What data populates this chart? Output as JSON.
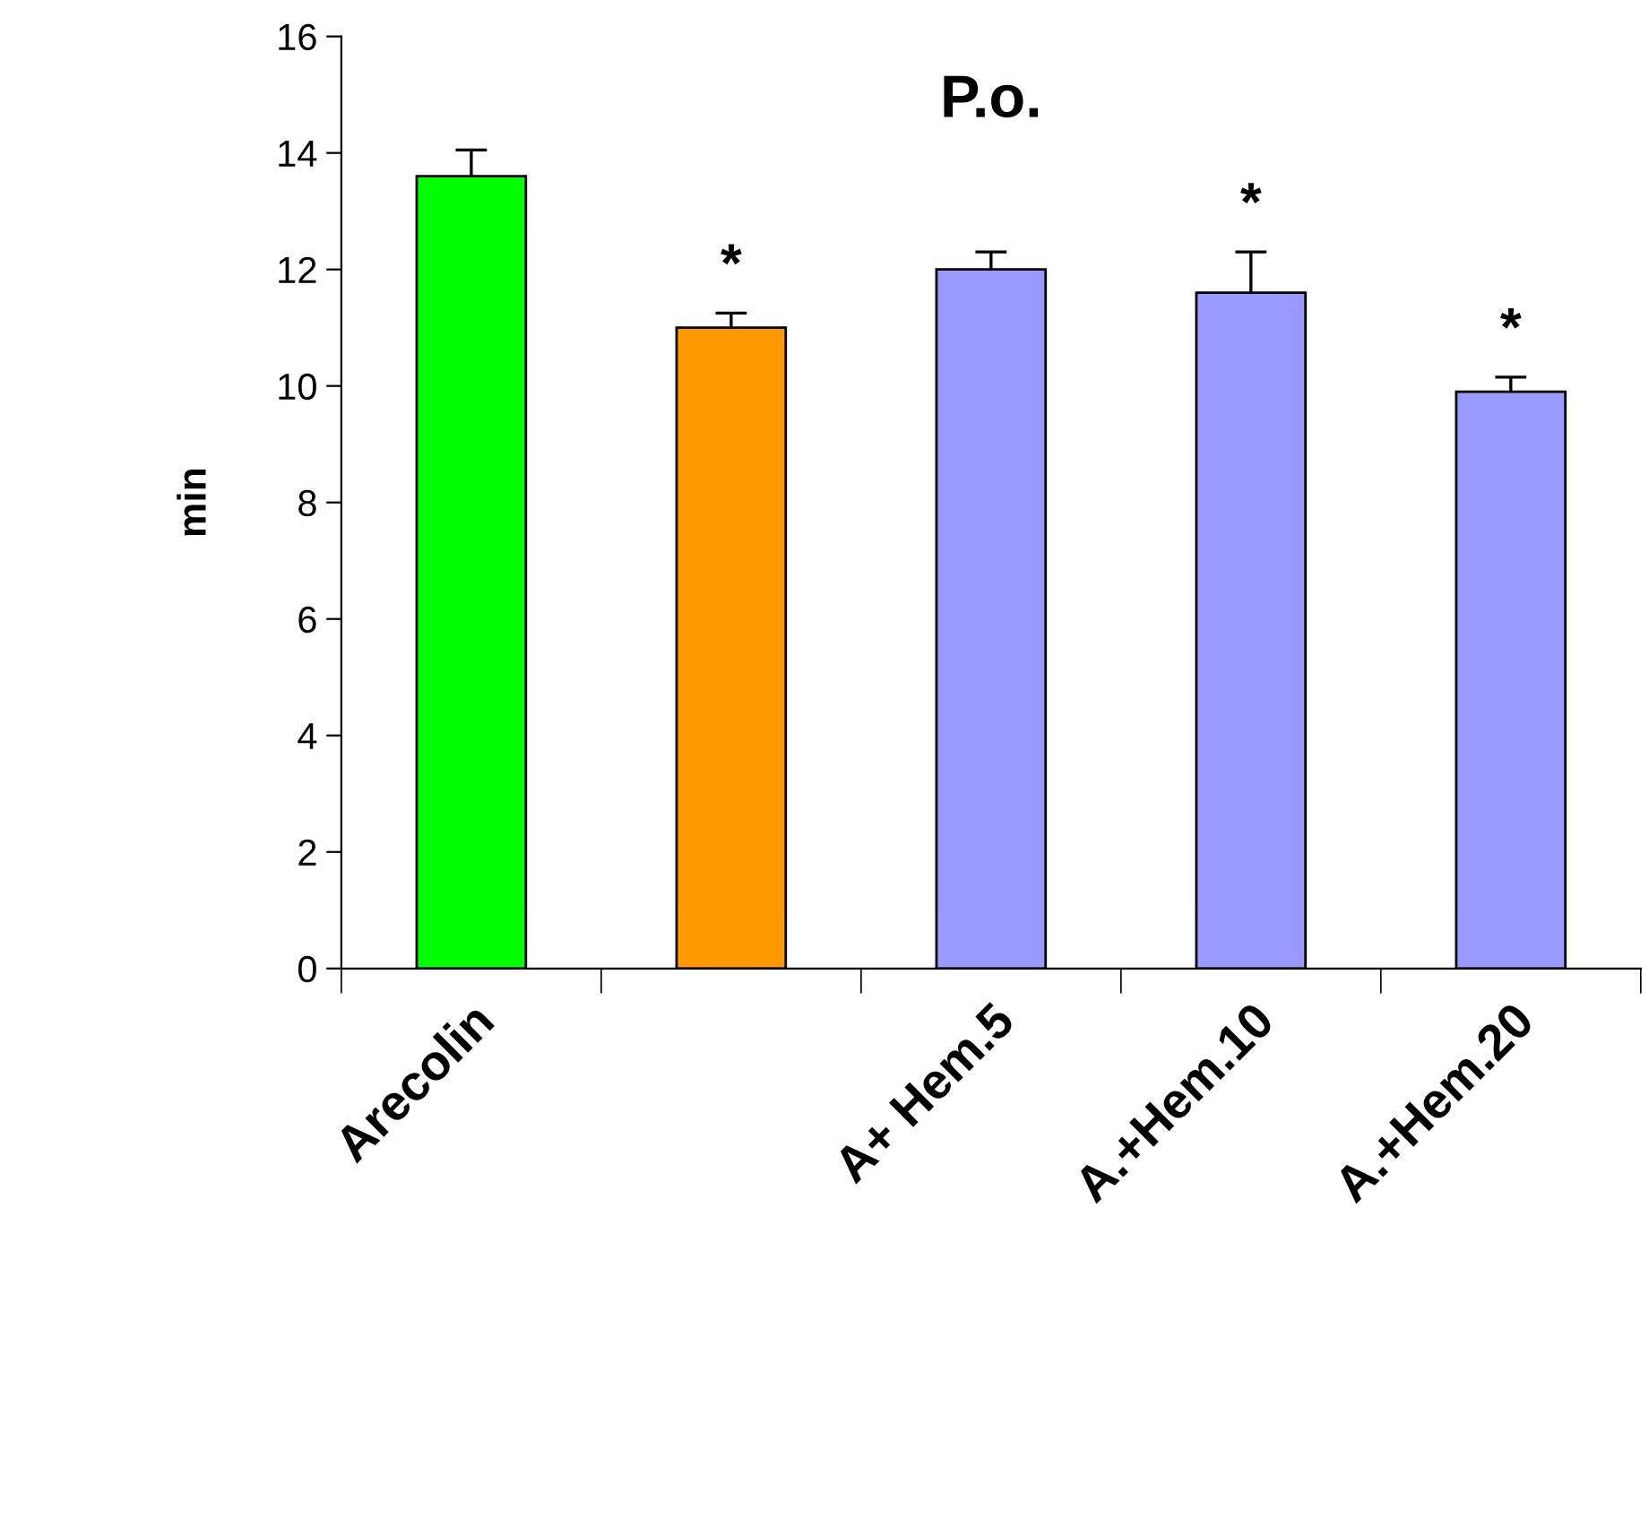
{
  "chart_data": {
    "type": "bar",
    "title": "P.o.",
    "ylabel": "min",
    "categories": [
      "Arecolin",
      null,
      "A+ Hem.5",
      "A.+Hem.10",
      "A.+Hem.20"
    ],
    "values": [
      13.6,
      11.0,
      12.0,
      11.6,
      9.9
    ],
    "colors": [
      "#00ff00",
      "#ff9900",
      "#9999ff",
      "#9999ff",
      "#9999ff"
    ],
    "errors": [
      [
        13.6,
        14.05
      ],
      [
        11.0,
        11.25
      ],
      [
        12.0,
        12.3
      ],
      [
        11.6,
        12.3
      ],
      [
        9.9,
        10.15
      ]
    ],
    "ylim": [
      0,
      16
    ],
    "yticks": [
      0,
      2,
      4,
      6,
      8,
      10,
      12,
      14,
      16
    ],
    "annotations": [
      "*",
      "*",
      "*"
    ]
  }
}
